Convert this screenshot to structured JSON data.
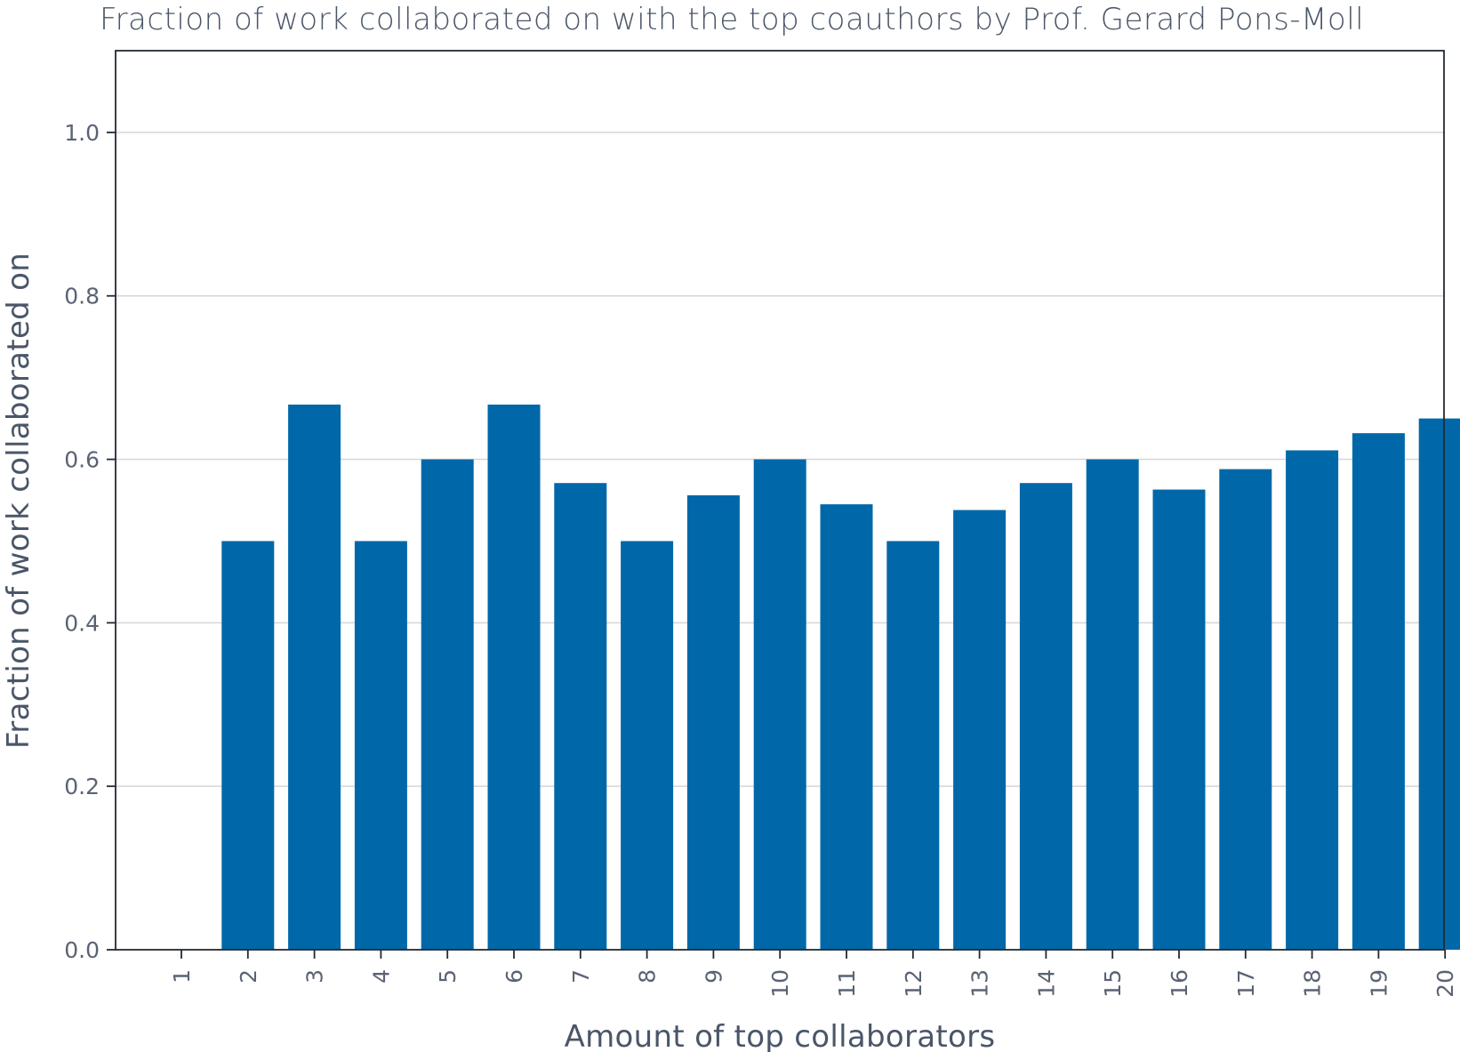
{
  "chart_data": {
    "type": "bar",
    "title": "Fraction of work collaborated on with the top coauthors by Prof. Gerard Pons-Moll",
    "xlabel": "Amount of top collaborators",
    "ylabel": "Fraction of work collaborated on",
    "categories": [
      "1",
      "2",
      "3",
      "4",
      "5",
      "6",
      "7",
      "8",
      "9",
      "10",
      "11",
      "12",
      "13",
      "14",
      "15",
      "16",
      "17",
      "18",
      "19",
      "20"
    ],
    "values": [
      0.0,
      0.5,
      0.667,
      0.5,
      0.6,
      0.667,
      0.571,
      0.5,
      0.556,
      0.6,
      0.545,
      0.5,
      0.538,
      0.571,
      0.6,
      0.563,
      0.588,
      0.611,
      0.632,
      0.65
    ],
    "ylim": [
      0,
      1.1
    ],
    "yticks": [
      "0.0",
      "0.2",
      "0.4",
      "0.6",
      "0.8",
      "1.0"
    ],
    "grid": true,
    "bar_color": "#0068a9"
  }
}
